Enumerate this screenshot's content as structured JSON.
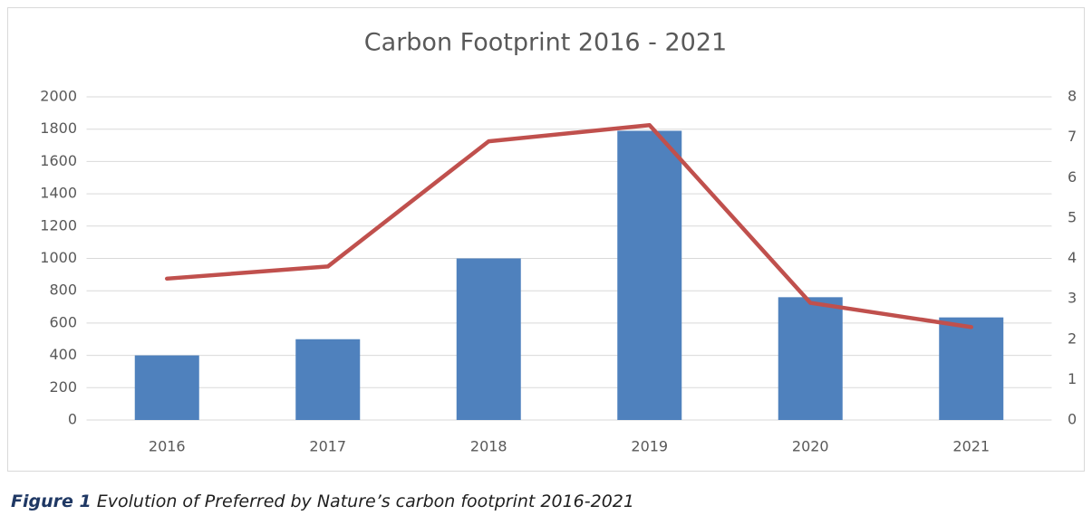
{
  "chart_data": {
    "type": "bar",
    "title": "Carbon Footprint 2016 - 2021",
    "categories": [
      "2016",
      "2017",
      "2018",
      "2019",
      "2020",
      "2021"
    ],
    "series": [
      {
        "type": "bar",
        "color": "#4f81bd",
        "values": [
          400,
          500,
          1000,
          1790,
          760,
          635
        ]
      },
      {
        "type": "line",
        "axis": "y2",
        "color": "#c0504d",
        "values": [
          3.5,
          3.8,
          6.9,
          7.3,
          2.9,
          2.3
        ]
      }
    ],
    "ylim": [
      0,
      2000
    ],
    "yticks": [
      0,
      200,
      400,
      600,
      800,
      1000,
      1200,
      1400,
      1600,
      1800,
      2000
    ],
    "y2lim": [
      0,
      8
    ],
    "y2ticks": [
      0,
      1,
      2,
      3,
      4,
      5,
      6,
      7,
      8
    ],
    "grid": true,
    "caption_label": "Figure 1",
    "caption": "Evolution of Preferred by Nature’s carbon footprint 2016-2021"
  }
}
